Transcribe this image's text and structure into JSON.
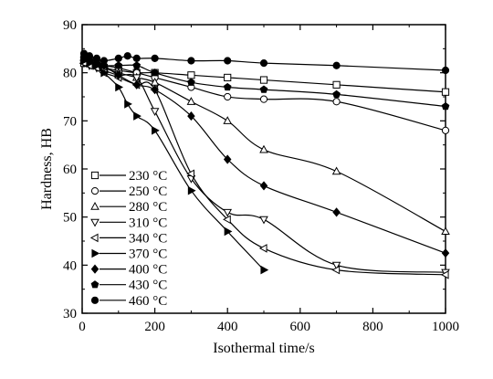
{
  "chart_data": {
    "type": "line",
    "xlabel": "Isothermal time/s",
    "ylabel": "Hardness, HB",
    "xlim": [
      0,
      1000
    ],
    "ylim": [
      30,
      90
    ],
    "xticks": [
      0,
      200,
      400,
      600,
      800,
      1000
    ],
    "yticks": [
      30,
      40,
      50,
      60,
      70,
      80,
      90
    ],
    "grid": false,
    "legend_position": "bottom-left",
    "series": [
      {
        "name": "230 °C",
        "marker": "square-open",
        "x": [
          5,
          20,
          40,
          60,
          100,
          150,
          200,
          300,
          400,
          500,
          700,
          1000
        ],
        "y": [
          82,
          82,
          81.5,
          81,
          80.5,
          80,
          80,
          79.5,
          79,
          78.5,
          77.5,
          76
        ]
      },
      {
        "name": "250 °C",
        "marker": "circle-open",
        "x": [
          5,
          20,
          40,
          60,
          100,
          150,
          200,
          300,
          400,
          500,
          700,
          1000
        ],
        "y": [
          83,
          82.5,
          82,
          81.5,
          81,
          80,
          79,
          77,
          75,
          74.5,
          74,
          68
        ]
      },
      {
        "name": "280 °C",
        "marker": "triangle-up-open",
        "x": [
          5,
          20,
          40,
          60,
          100,
          150,
          200,
          300,
          400,
          500,
          700,
          1000
        ],
        "y": [
          82.5,
          82,
          81.5,
          81,
          80,
          79,
          78,
          74,
          70,
          64,
          59.5,
          47
        ]
      },
      {
        "name": "310 °C",
        "marker": "triangle-down-open",
        "x": [
          5,
          20,
          40,
          60,
          100,
          150,
          200,
          300,
          400,
          500,
          700,
          1000
        ],
        "y": [
          82,
          81.5,
          81,
          80.5,
          79.5,
          79,
          72,
          58,
          51,
          49.5,
          40,
          38.5
        ]
      },
      {
        "name": "340 °C",
        "marker": "triangle-left-open",
        "x": [
          5,
          20,
          40,
          60,
          100,
          150,
          200,
          300,
          400,
          500,
          700,
          1000
        ],
        "y": [
          82,
          81.5,
          81,
          80,
          79,
          77.5,
          76.5,
          59,
          49.5,
          43.5,
          39,
          38
        ]
      },
      {
        "name": "370 °C",
        "marker": "triangle-right-filled",
        "x": [
          5,
          20,
          40,
          60,
          100,
          125,
          150,
          200,
          300,
          400,
          500
        ],
        "y": [
          82.5,
          82,
          81.5,
          80,
          77,
          73.5,
          71,
          68,
          55.5,
          47,
          39
        ]
      },
      {
        "name": "400 °C",
        "marker": "diamond-filled",
        "x": [
          5,
          20,
          40,
          60,
          100,
          150,
          200,
          300,
          400,
          500,
          700,
          1000
        ],
        "y": [
          83.5,
          83,
          82.5,
          81.5,
          79.5,
          77.5,
          76.5,
          71,
          62,
          56.5,
          51,
          42.5
        ]
      },
      {
        "name": "430 °C",
        "marker": "pentagon-filled",
        "x": [
          5,
          20,
          40,
          60,
          100,
          150,
          200,
          300,
          400,
          500,
          700,
          1000
        ],
        "y": [
          83,
          82.5,
          82,
          81.5,
          81.5,
          81.5,
          80,
          78,
          77,
          76.5,
          75.5,
          73
        ]
      },
      {
        "name": "460 °C",
        "marker": "circle-filled",
        "x": [
          5,
          20,
          40,
          60,
          100,
          125,
          150,
          200,
          300,
          400,
          500,
          700,
          1000
        ],
        "y": [
          84,
          83.5,
          83,
          82.5,
          83,
          83.5,
          83,
          83,
          82.5,
          82.5,
          82,
          81.5,
          80.5
        ]
      }
    ]
  }
}
